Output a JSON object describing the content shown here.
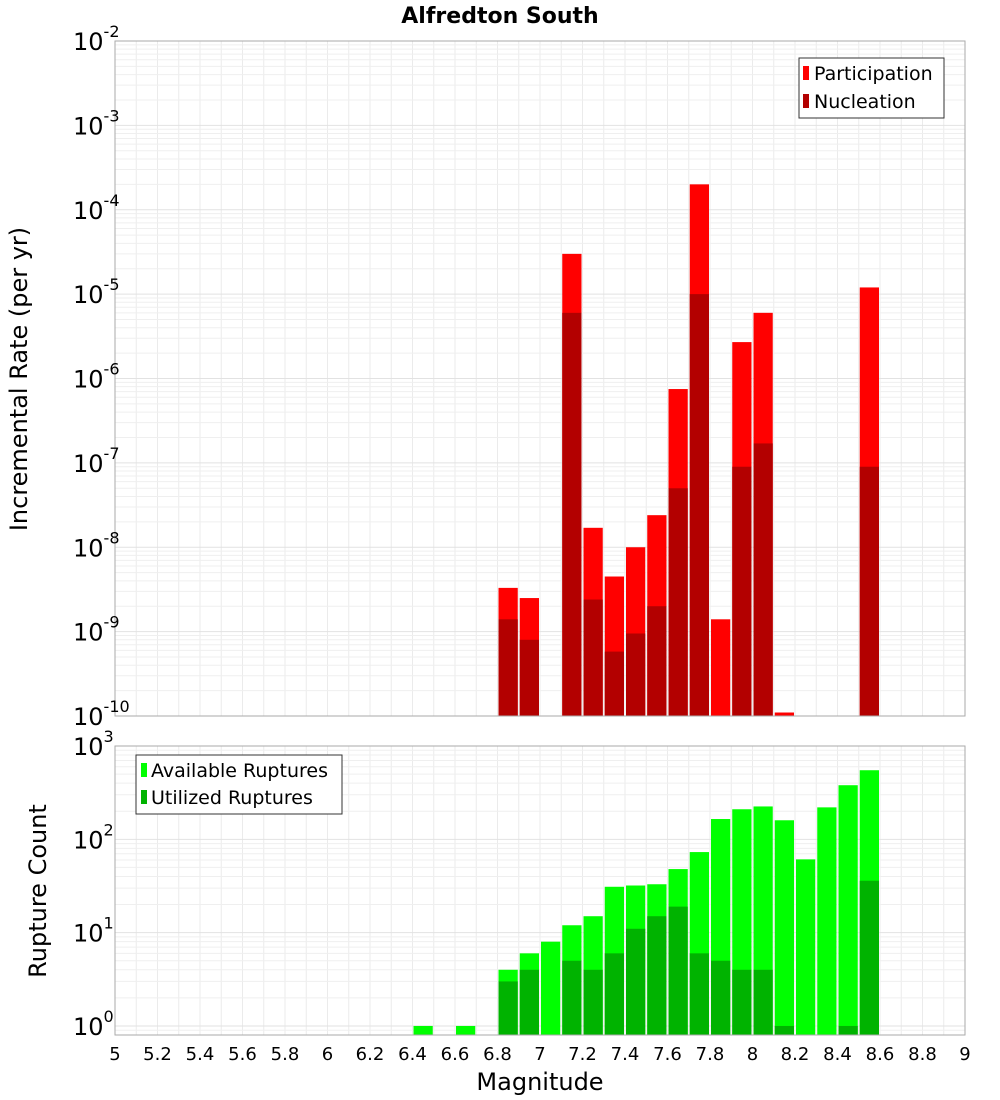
{
  "chart_data": [
    {
      "type": "bar",
      "title": "Alfredton South",
      "ylabel": "Incremental Rate (per yr)",
      "xlabel": "",
      "yscale": "log",
      "ylim": [
        1e-10,
        0.01
      ],
      "xlim": [
        5,
        9
      ],
      "y_tick_bases": [
        "10",
        "10",
        "10",
        "10",
        "10",
        "10",
        "10",
        "10",
        "10"
      ],
      "y_tick_exponents": [
        "-10",
        "-9",
        "-8",
        "-7",
        "-6",
        "-5",
        "-4",
        "-3",
        "-2"
      ],
      "grid": true,
      "legend_position": "top-right",
      "series": [
        {
          "name": "Participation",
          "color": "#ff0000",
          "x": [
            6.85,
            6.95,
            7.15,
            7.25,
            7.35,
            7.45,
            7.55,
            7.65,
            7.75,
            7.85,
            7.95,
            8.05,
            8.15,
            8.55
          ],
          "values": [
            3.3e-09,
            2.5e-09,
            3e-05,
            1.7e-08,
            4.5e-09,
            1e-08,
            2.4e-08,
            7.5e-07,
            0.0002,
            1.4e-09,
            2.7e-06,
            6e-06,
            1.1e-10,
            1.2e-05
          ]
        },
        {
          "name": "Nucleation",
          "color": "#b30000",
          "x": [
            6.85,
            6.95,
            7.15,
            7.25,
            7.35,
            7.45,
            7.55,
            7.65,
            7.75,
            7.85,
            7.95,
            8.05,
            8.15,
            8.55
          ],
          "values": [
            1.4e-09,
            8e-10,
            6e-06,
            2.4e-09,
            5.8e-10,
            9.5e-10,
            2e-09,
            5e-08,
            1e-05,
            0,
            9e-08,
            1.7e-07,
            0,
            9e-08
          ]
        }
      ]
    },
    {
      "type": "bar",
      "title": "",
      "ylabel": "Rupture Count",
      "xlabel": "Magnitude",
      "yscale": "log",
      "ylim": [
        0.8,
        1000
      ],
      "xlim": [
        5,
        9
      ],
      "y_tick_bases": [
        "10",
        "10",
        "10",
        "10"
      ],
      "y_tick_exponents": [
        "0",
        "1",
        "2",
        "3"
      ],
      "x_tick_labels": [
        "5",
        "5.2",
        "5.4",
        "5.6",
        "5.8",
        "6",
        "6.2",
        "6.4",
        "6.6",
        "6.8",
        "7",
        "7.2",
        "7.4",
        "7.6",
        "7.8",
        "8",
        "8.2",
        "8.4",
        "8.6",
        "8.8",
        "9"
      ],
      "grid": true,
      "legend_position": "top-left",
      "series": [
        {
          "name": "Available Ruptures",
          "color": "#00ff00",
          "x": [
            6.45,
            6.65,
            6.85,
            6.95,
            7.05,
            7.15,
            7.25,
            7.35,
            7.45,
            7.55,
            7.65,
            7.75,
            7.85,
            7.95,
            8.05,
            8.15,
            8.25,
            8.35,
            8.45,
            8.55
          ],
          "values": [
            1,
            1,
            4,
            6,
            8,
            12,
            15,
            31,
            32,
            33,
            48,
            73,
            165,
            210,
            225,
            160,
            61,
            220,
            380,
            550
          ]
        },
        {
          "name": "Utilized Ruptures",
          "color": "#00b300",
          "x": [
            6.85,
            6.95,
            7.05,
            7.15,
            7.25,
            7.35,
            7.45,
            7.55,
            7.65,
            7.75,
            7.85,
            7.95,
            8.05,
            8.15,
            8.25,
            8.35,
            8.45,
            8.55
          ],
          "values": [
            3,
            4,
            0,
            5,
            4,
            6,
            11,
            15,
            19,
            6,
            5,
            4,
            4,
            1,
            0,
            0,
            1,
            36
          ]
        }
      ]
    }
  ]
}
